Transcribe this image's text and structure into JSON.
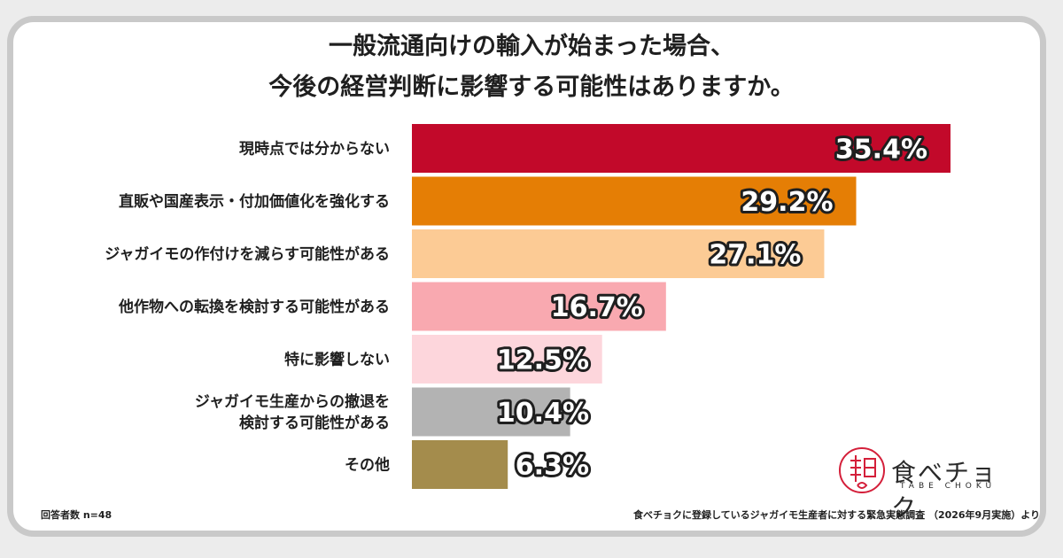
{
  "title": {
    "line1": "一般流通向けの輸入が始まった場合、",
    "line2": "今後の経営判断に影響する可能性はありますか。"
  },
  "chart_data": {
    "type": "bar",
    "orientation": "horizontal",
    "categories": [
      "現時点では分からない",
      "直販や国産表示・付加価値化を強化する",
      "ジャガイモの作付けを減らす可能性がある",
      "他作物への転換を検討する可能性がある",
      "特に影響しない",
      "ジャガイモ生産からの撤退を\n検討する可能性がある",
      "その他"
    ],
    "values": [
      35.4,
      29.2,
      27.1,
      16.7,
      12.5,
      10.4,
      6.3
    ],
    "value_labels": [
      "35.4%",
      "29.2%",
      "27.1%",
      "16.7%",
      "12.5%",
      "10.4%",
      "6.3%"
    ],
    "colors": [
      "#c2092a",
      "#e57e05",
      "#fccb95",
      "#f9a9b0",
      "#fdd6dc",
      "#b3b3b3",
      "#a48c4c"
    ],
    "unit": "%",
    "grid": false,
    "legend": "none"
  },
  "footer": {
    "respondents": "回答者数 n=48",
    "source": "食べチョクに登録しているジャガイモ生産者に対する緊急実態調査 （2026年9月実施）より"
  },
  "logo": {
    "name": "食べチョク",
    "sub": "TABE CHOKU",
    "color": "#d41f3a"
  }
}
